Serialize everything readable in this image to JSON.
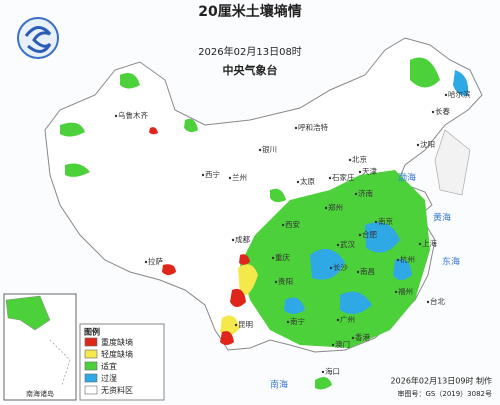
{
  "header": {
    "title": "20厘米土壤墒情",
    "time": "2026年02月13日08时",
    "agency": "中央气象台"
  },
  "legend": {
    "title": "图例",
    "items": [
      {
        "label": "重度缺墒",
        "color": "#e0251b"
      },
      {
        "label": "轻度缺墒",
        "color": "#f5e84a"
      },
      {
        "label": "适宜",
        "color": "#4cd13a"
      },
      {
        "label": "过湿",
        "color": "#2fa8e6"
      },
      {
        "label": "无资料区",
        "color": "#ffffff"
      }
    ]
  },
  "labels": [
    "乌鲁木齐",
    "拉萨",
    "西宁",
    "兰州",
    "银川",
    "呼和浩特",
    "北京",
    "天津",
    "石家庄",
    "太原",
    "济南",
    "郑州",
    "西安",
    "成都",
    "重庆",
    "武汉",
    "合肥",
    "南京",
    "上海",
    "杭州",
    "长沙",
    "南昌",
    "福州",
    "台北",
    "贵阳",
    "昆明",
    "南宁",
    "广州",
    "香港",
    "澳门",
    "海口",
    "沈阳",
    "长春",
    "哈尔滨",
    "渤海",
    "黄海",
    "东海",
    "南海"
  ],
  "inset": {
    "label": "南海诸岛"
  },
  "footer": {
    "made": "2026年02月13日09时 制作",
    "approval": "审图号：GS（2019）3082号"
  }
}
